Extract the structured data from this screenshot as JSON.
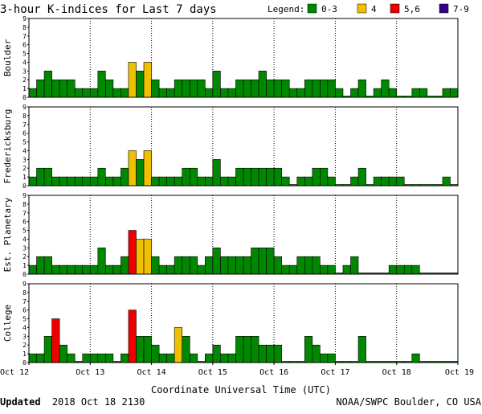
{
  "header": {
    "title": "3-hour K-indices for Last 7 days",
    "legend_label": "Legend:",
    "legend_items": [
      {
        "label": "0-3",
        "color": "#008800"
      },
      {
        "label": "4",
        "color": "#f0c000"
      },
      {
        "label": "5,6",
        "color": "#ee0000"
      },
      {
        "label": "7-9",
        "color": "#330088"
      }
    ]
  },
  "footer": {
    "updated_label": "Updated",
    "updated_time": "2018 Oct 18 2130",
    "credit": "NOAA/SWPC Boulder, CO USA"
  },
  "chart_data": {
    "type": "bar",
    "xlabel": "Coordinate Universal Time (UTC)",
    "x_ticks": [
      "Oct 12",
      "Oct 13",
      "Oct 14",
      "Oct 15",
      "Oct 16",
      "Oct 17",
      "Oct 18",
      "Oct 19"
    ],
    "y_ticks": [
      "0",
      "1",
      "2",
      "3",
      "4",
      "5",
      "6",
      "7",
      "8",
      "9"
    ],
    "ylim": [
      0,
      9
    ],
    "intervals_per_day": 8,
    "bars_per_panel": 56,
    "missing_value": -1,
    "color_scale": [
      {
        "range": [
          0,
          3
        ],
        "color": "#008800"
      },
      {
        "range": [
          4,
          4
        ],
        "color": "#f0c000"
      },
      {
        "range": [
          5,
          6
        ],
        "color": "#ee0000"
      },
      {
        "range": [
          7,
          9
        ],
        "color": "#330088"
      }
    ],
    "panels": [
      {
        "name": "Boulder",
        "values": [
          1,
          2,
          3,
          2,
          2,
          2,
          1,
          1,
          1,
          3,
          2,
          1,
          1,
          4,
          3,
          4,
          2,
          1,
          1,
          2,
          2,
          2,
          2,
          1,
          3,
          1,
          1,
          2,
          2,
          2,
          3,
          2,
          2,
          2,
          1,
          1,
          2,
          2,
          2,
          2,
          1,
          0,
          1,
          2,
          0,
          1,
          2,
          1,
          0,
          0,
          1,
          1,
          0,
          0,
          1,
          1
        ]
      },
      {
        "name": "Fredericksburg",
        "values": [
          1,
          2,
          2,
          1,
          1,
          1,
          1,
          1,
          1,
          2,
          1,
          1,
          2,
          4,
          3,
          4,
          1,
          1,
          1,
          1,
          2,
          2,
          1,
          1,
          3,
          1,
          1,
          2,
          2,
          2,
          2,
          2,
          2,
          1,
          0,
          1,
          1,
          2,
          2,
          1,
          0,
          0,
          1,
          2,
          0,
          1,
          1,
          1,
          1,
          0,
          0,
          0,
          0,
          0,
          1,
          0
        ]
      },
      {
        "name": "Est. Planetary",
        "values": [
          1,
          2,
          2,
          1,
          1,
          1,
          1,
          1,
          1,
          3,
          1,
          1,
          2,
          5,
          4,
          4,
          2,
          1,
          1,
          2,
          2,
          2,
          1,
          2,
          3,
          2,
          2,
          2,
          2,
          3,
          3,
          3,
          2,
          1,
          1,
          2,
          2,
          2,
          1,
          1,
          0,
          1,
          2,
          0,
          0,
          0,
          0,
          1,
          1,
          1,
          1,
          0,
          0,
          0,
          0,
          0
        ]
      },
      {
        "name": "College",
        "values": [
          1,
          1,
          3,
          5,
          2,
          1,
          0,
          1,
          1,
          1,
          1,
          0,
          1,
          6,
          3,
          3,
          2,
          1,
          1,
          4,
          3,
          1,
          0,
          1,
          2,
          1,
          1,
          3,
          3,
          3,
          2,
          2,
          2,
          0,
          0,
          0,
          3,
          2,
          1,
          1,
          0,
          0,
          0,
          3,
          0,
          0,
          0,
          0,
          0,
          0,
          1,
          0,
          0,
          0,
          0,
          0
        ]
      }
    ]
  }
}
